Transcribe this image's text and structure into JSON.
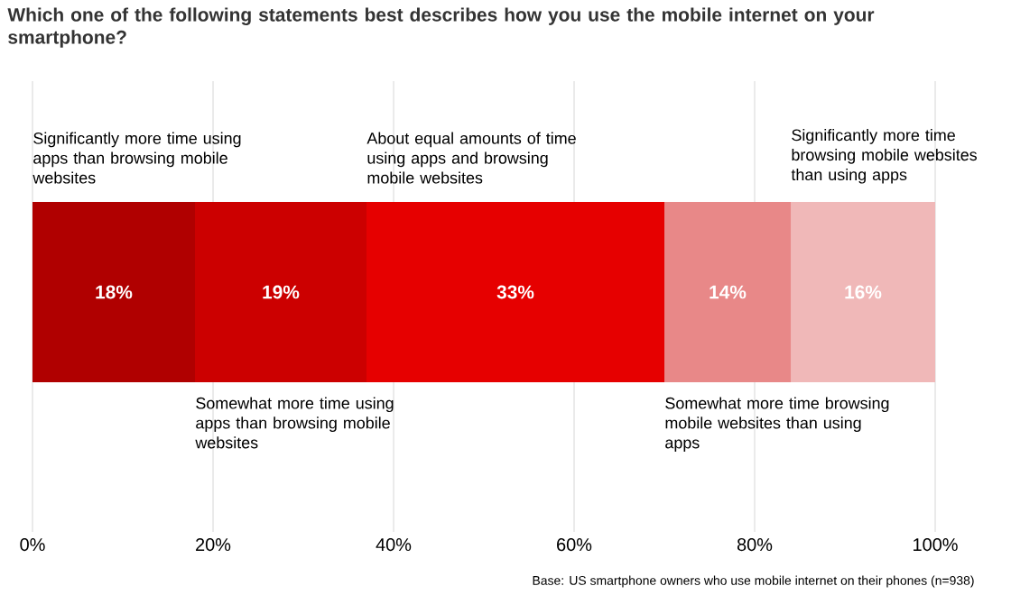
{
  "chart_data": {
    "type": "bar",
    "orientation": "horizontal",
    "stacked": true,
    "title": "Which one of the following statements best describes how you use the mobile internet on your smartphone?",
    "categories": [
      null
    ],
    "series": [
      {
        "name": "Significantly more time using apps than browsing mobile websites",
        "color": "#b00000",
        "values": [
          18
        ],
        "value_labels": [
          "18%"
        ]
      },
      {
        "name": "Somewhat more time using apps than browsing mobile websites",
        "color": "#cc0000",
        "values": [
          19
        ],
        "value_labels": [
          "19%"
        ]
      },
      {
        "name": "About equal amounts of time using apps and browsing mobile websites",
        "color": "#e60000",
        "values": [
          33
        ],
        "value_labels": [
          "33%"
        ]
      },
      {
        "name": "Somewhat more time browsing mobile websites than using apps",
        "color": "#e88888",
        "values": [
          14
        ],
        "value_labels": [
          "14%"
        ]
      },
      {
        "name": "Significantly more time browsing mobile websites than using apps",
        "color": "#f0b8b8",
        "values": [
          16
        ],
        "value_labels": [
          "16%"
        ]
      }
    ],
    "xlim": [
      0,
      100
    ],
    "xticks": [
      {
        "value": 0,
        "label": "0%"
      },
      {
        "value": 20,
        "label": "20%"
      },
      {
        "value": 40,
        "label": "40%"
      },
      {
        "value": 60,
        "label": "60%"
      },
      {
        "value": 80,
        "label": "80%"
      },
      {
        "value": 100,
        "label": "100%"
      }
    ],
    "grid": "x",
    "annotations": [
      "Base: US smartphone owners who use mobile internet on their phones (n=938)"
    ]
  }
}
